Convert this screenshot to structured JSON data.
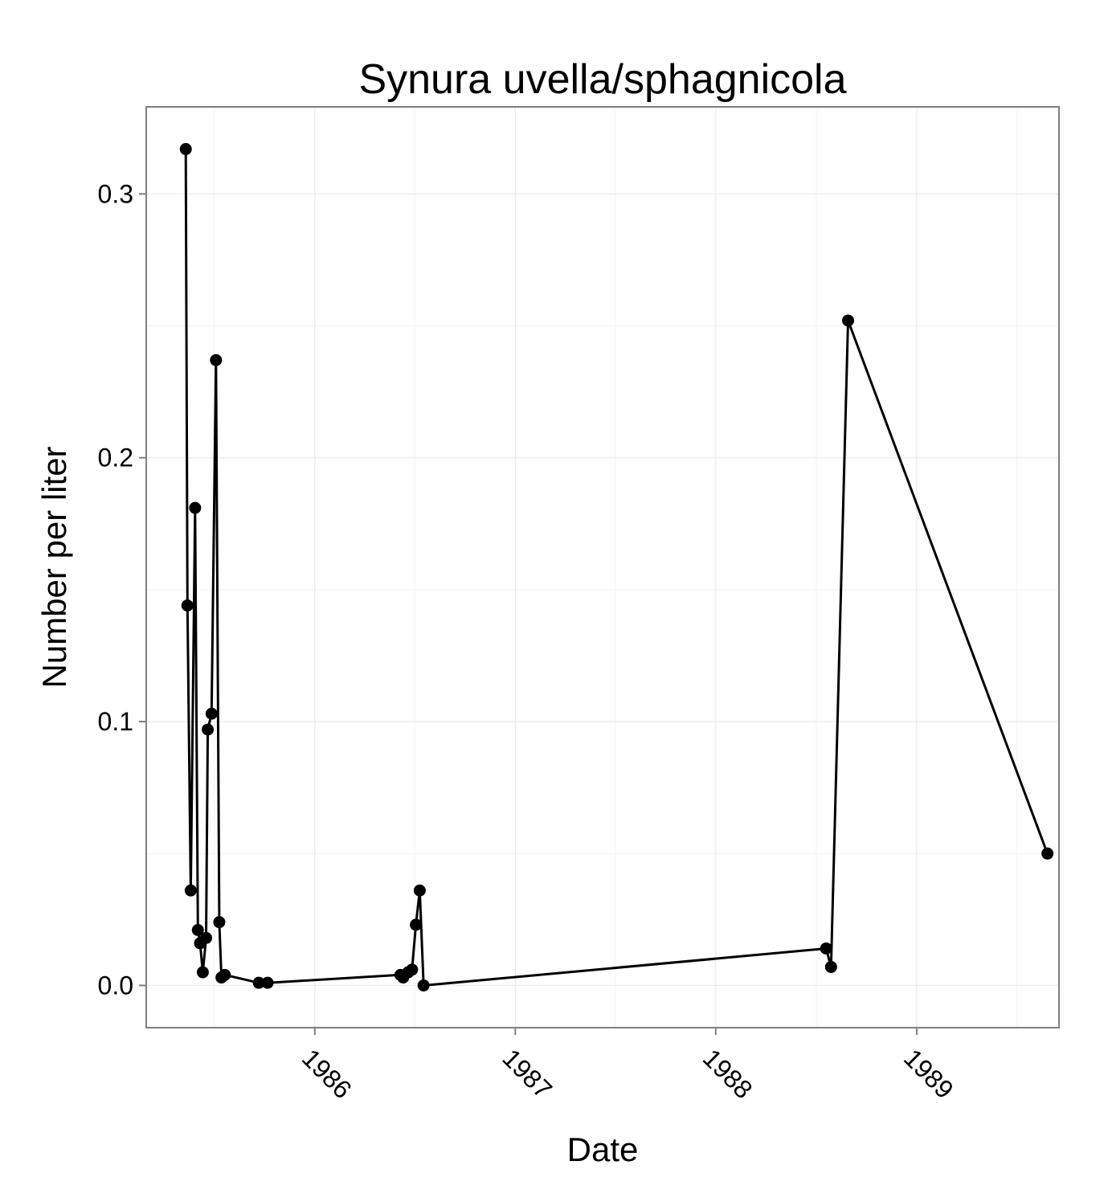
{
  "chart_data": {
    "type": "line",
    "title": "Synura uvella/sphagnicola",
    "xlabel": "Date",
    "ylabel": "Number per liter",
    "grid": true,
    "legend": "none",
    "xlim": [
      "1985-02-28",
      "1989-09-17"
    ],
    "ylim": [
      -0.016,
      0.333
    ],
    "x_ticks": [
      {
        "date": "1986-01-01",
        "label": "1986"
      },
      {
        "date": "1987-01-01",
        "label": "1987"
      },
      {
        "date": "1988-01-01",
        "label": "1988"
      },
      {
        "date": "1989-01-01",
        "label": "1989"
      }
    ],
    "y_ticks": [
      {
        "value": 0.0,
        "label": "0.0"
      },
      {
        "value": 0.1,
        "label": "0.1"
      },
      {
        "value": 0.2,
        "label": "0.2"
      },
      {
        "value": 0.3,
        "label": "0.3"
      }
    ],
    "series": [
      {
        "color": "#000000",
        "points": [
          {
            "x": "1985-05-11",
            "y": 0.317
          },
          {
            "x": "1985-05-14",
            "y": 0.144
          },
          {
            "x": "1985-05-20",
            "y": 0.036
          },
          {
            "x": "1985-05-28",
            "y": 0.181
          },
          {
            "x": "1985-06-02",
            "y": 0.021
          },
          {
            "x": "1985-06-06",
            "y": 0.016
          },
          {
            "x": "1985-06-11",
            "y": 0.005
          },
          {
            "x": "1985-06-17",
            "y": 0.018
          },
          {
            "x": "1985-06-20",
            "y": 0.097
          },
          {
            "x": "1985-06-27",
            "y": 0.103
          },
          {
            "x": "1985-07-05",
            "y": 0.237
          },
          {
            "x": "1985-07-11",
            "y": 0.024
          },
          {
            "x": "1985-07-15",
            "y": 0.003
          },
          {
            "x": "1985-07-21",
            "y": 0.004
          },
          {
            "x": "1985-09-21",
            "y": 0.001
          },
          {
            "x": "1985-10-07",
            "y": 0.001
          },
          {
            "x": "1986-06-06",
            "y": 0.004
          },
          {
            "x": "1986-06-11",
            "y": 0.003
          },
          {
            "x": "1986-06-20",
            "y": 0.005
          },
          {
            "x": "1986-06-27",
            "y": 0.006
          },
          {
            "x": "1986-07-04",
            "y": 0.023
          },
          {
            "x": "1986-07-11",
            "y": 0.036
          },
          {
            "x": "1986-07-18",
            "y": 0.0
          },
          {
            "x": "1988-07-20",
            "y": 0.014
          },
          {
            "x": "1988-07-29",
            "y": 0.007
          },
          {
            "x": "1988-08-29",
            "y": 0.252
          },
          {
            "x": "1989-08-27",
            "y": 0.05
          }
        ]
      }
    ]
  }
}
